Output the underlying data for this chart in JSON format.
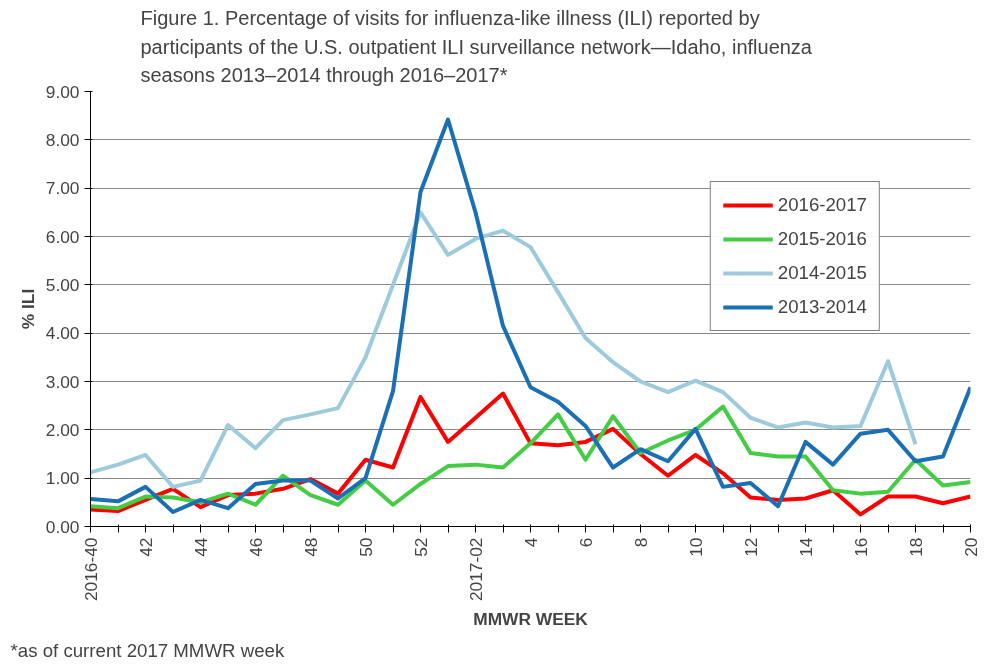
{
  "chart_data": {
    "type": "line",
    "title": "Figure 1. Percentage of visits for influenza-like illness (ILI) reported by participants of the U.S. outpatient ILI surveillance network—Idaho, influenza seasons 2013–2014 through 2016–2017*",
    "xlabel": "MMWR WEEK",
    "ylabel": "% ILI",
    "categories": [
      "2016-40",
      null,
      "42",
      null,
      "44",
      null,
      "46",
      null,
      "48",
      null,
      "50",
      null,
      "52",
      null,
      "2017-02",
      null,
      "4",
      null,
      "6",
      null,
      "8",
      null,
      "10",
      null,
      "12",
      null,
      "14",
      null,
      "16",
      null,
      "18",
      null,
      "20"
    ],
    "series": [
      {
        "name": "2016-2017",
        "color": "#ff0000",
        "values": [
          0.35,
          0.32,
          0.55,
          0.78,
          0.4,
          0.65,
          0.68,
          0.78,
          0.98,
          0.68,
          1.38,
          1.22,
          2.68,
          1.75,
          2.25,
          2.75,
          1.72,
          1.68,
          1.75,
          2.02,
          1.5,
          1.05,
          1.48,
          1.1,
          0.6,
          0.55,
          0.58,
          0.75,
          0.25,
          0.62,
          0.62,
          0.48,
          0.62
        ]
      },
      {
        "name": "2015-2016",
        "color": "#44cc44",
        "values": [
          0.42,
          0.38,
          0.62,
          0.6,
          0.5,
          0.68,
          0.45,
          1.05,
          0.65,
          0.45,
          0.95,
          0.45,
          0.88,
          1.25,
          1.28,
          1.22,
          1.72,
          2.32,
          1.38,
          2.28,
          1.52,
          1.78,
          2.0,
          2.48,
          1.52,
          1.45,
          1.45,
          0.75,
          0.68,
          0.72,
          1.38,
          0.85,
          0.92
        ]
      },
      {
        "name": "2014-2015",
        "color": "#9ecbdc",
        "values": [
          1.12,
          1.28,
          1.48,
          0.82,
          0.95,
          2.1,
          1.62,
          2.2,
          2.32,
          2.45,
          3.5,
          5.0,
          6.5,
          5.62,
          5.95,
          6.12,
          5.78,
          4.85,
          3.9,
          3.4,
          3.0,
          2.78,
          3.02,
          2.78,
          2.25,
          2.05,
          2.15,
          2.05,
          2.08,
          3.42,
          1.7,
          null,
          null
        ]
      },
      {
        "name": "2013-2014",
        "color": "#1a6fb5",
        "values": [
          0.57,
          0.52,
          0.82,
          0.3,
          0.55,
          0.38,
          0.88,
          0.95,
          0.95,
          0.58,
          1.0,
          2.8,
          6.92,
          8.42,
          6.5,
          4.15,
          2.88,
          2.58,
          2.08,
          1.22,
          1.6,
          1.35,
          2.02,
          0.82,
          0.9,
          0.42,
          1.75,
          1.28,
          1.92,
          2.0,
          1.35,
          1.45,
          2.88
        ]
      }
    ],
    "ylim": [
      0,
      9
    ],
    "yticks": [
      {
        "value": 0,
        "label": "0.00"
      },
      {
        "value": 1,
        "label": "1.00"
      },
      {
        "value": 2,
        "label": "2.00"
      },
      {
        "value": 3,
        "label": "3.00"
      },
      {
        "value": 4,
        "label": "4.00"
      },
      {
        "value": 5,
        "label": "5.00"
      },
      {
        "value": 6,
        "label": "6.00"
      },
      {
        "value": 7,
        "label": "7.00"
      },
      {
        "value": 8,
        "label": "8.00"
      },
      {
        "value": 9,
        "label": "9.00"
      }
    ],
    "grid": "y",
    "legend": "top right",
    "marker": "none",
    "line_style": "solid",
    "annotations": [
      "*as of current 2017 MMWR week"
    ]
  }
}
